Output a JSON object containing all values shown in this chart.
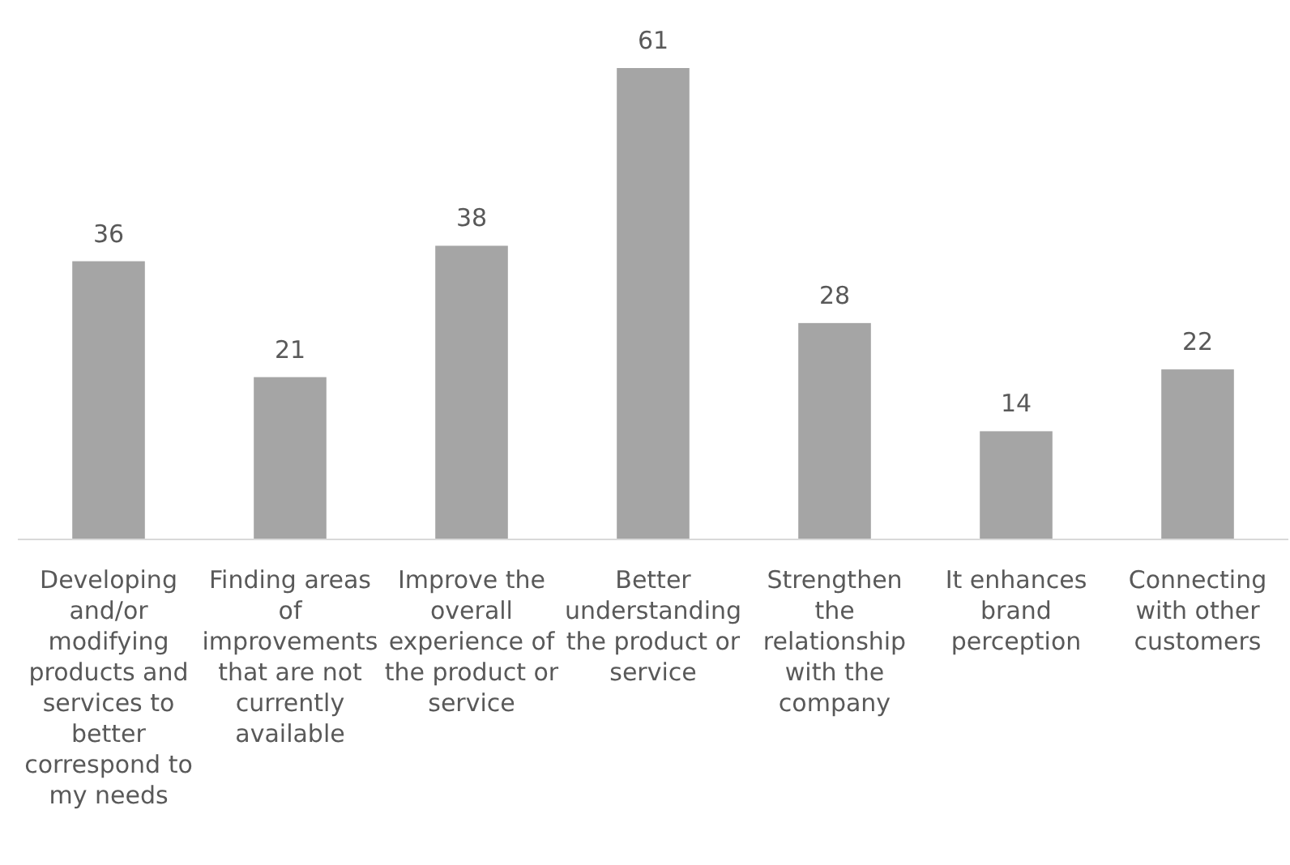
{
  "chart_data": {
    "type": "bar",
    "categories": [
      "Developing and/or modifying products and services to better correspond to my needs",
      "Finding areas of improvements that are not currently available",
      "Improve the overall experience of the product or service",
      "Better understanding the product or service",
      "Strengthen the relationship with the company",
      "It enhances brand perception",
      "Connecting with other customers"
    ],
    "values": [
      36,
      21,
      38,
      61,
      28,
      14,
      22
    ],
    "color": "#a5a5a5",
    "data_labels": true,
    "ylim": [
      0,
      61
    ]
  }
}
